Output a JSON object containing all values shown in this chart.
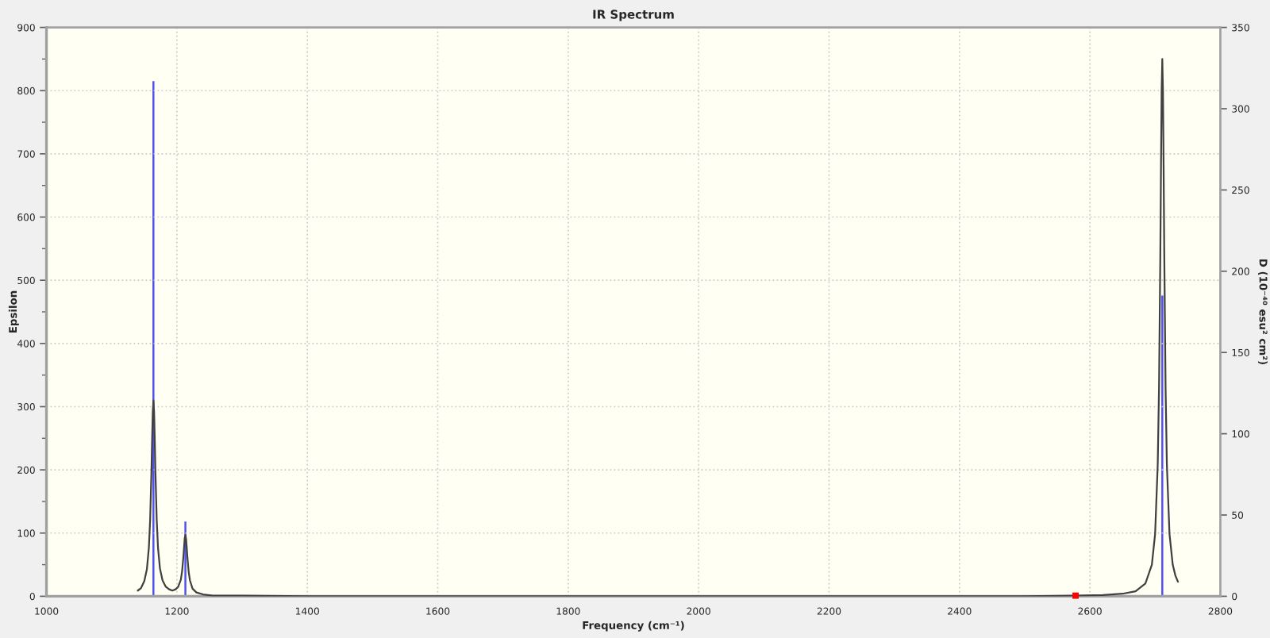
{
  "chart_data": {
    "type": "line",
    "title": "IR Spectrum",
    "xlabel": "Frequency (cm⁻¹)",
    "ylabel": "Epsilon",
    "y2label": "D (10⁻⁴⁰ esu² cm²)",
    "xlim": [
      1000,
      2800
    ],
    "xticks": [
      1000,
      1200,
      1400,
      1600,
      1800,
      2000,
      2200,
      2400,
      2600,
      2800
    ],
    "ylim": [
      0,
      900
    ],
    "yticks": [
      0,
      100,
      200,
      300,
      400,
      500,
      600,
      700,
      800,
      900
    ],
    "y2lim": [
      0,
      350
    ],
    "y2ticks": [
      0,
      50,
      100,
      150,
      200,
      250,
      300,
      350
    ],
    "grid": true,
    "series": [
      {
        "color": "#404040",
        "x": [
          1140,
          1145,
          1150,
          1154,
          1157,
          1159,
          1161,
          1162,
          1163,
          1164,
          1165,
          1166,
          1167,
          1169,
          1171,
          1174,
          1178,
          1183,
          1188,
          1193,
          1198,
          1202,
          1206,
          1208,
          1210,
          1211,
          1212,
          1213,
          1214,
          1215,
          1216,
          1218,
          1220,
          1224,
          1230,
          1240,
          1255,
          1270,
          1300,
          1400,
          1600,
          1800,
          2000,
          2200,
          2400,
          2500,
          2578,
          2620,
          2650,
          2670,
          2685,
          2695,
          2700,
          2704,
          2706,
          2708,
          2709,
          2710,
          2711,
          2712,
          2713,
          2714,
          2716,
          2718,
          2722,
          2727,
          2731,
          2735
        ],
        "values": [
          9,
          13,
          24,
          43,
          77,
          122,
          199,
          249,
          292,
          310,
          292,
          249,
          199,
          122,
          77,
          44,
          25,
          15,
          11,
          9,
          11,
          15,
          26,
          40,
          63,
          78,
          92,
          97,
          91,
          78,
          63,
          39,
          25,
          12,
          6,
          3,
          1,
          1,
          1,
          0,
          0,
          0,
          0,
          0,
          0,
          0,
          1,
          2,
          4,
          8,
          20,
          50,
          99,
          209,
          332,
          544,
          680,
          800,
          850,
          800,
          680,
          544,
          332,
          209,
          99,
          50,
          33,
          23
        ]
      },
      {
        "type": "bar",
        "axis": "y2",
        "color": "#5050f0",
        "x": [
          1164,
          1213,
          2711
        ],
        "values": [
          317,
          46,
          185
        ]
      },
      {
        "type": "scatter",
        "marker": "square",
        "color": "#ff0000",
        "x": [
          2578
        ],
        "values": [
          1
        ]
      }
    ]
  }
}
